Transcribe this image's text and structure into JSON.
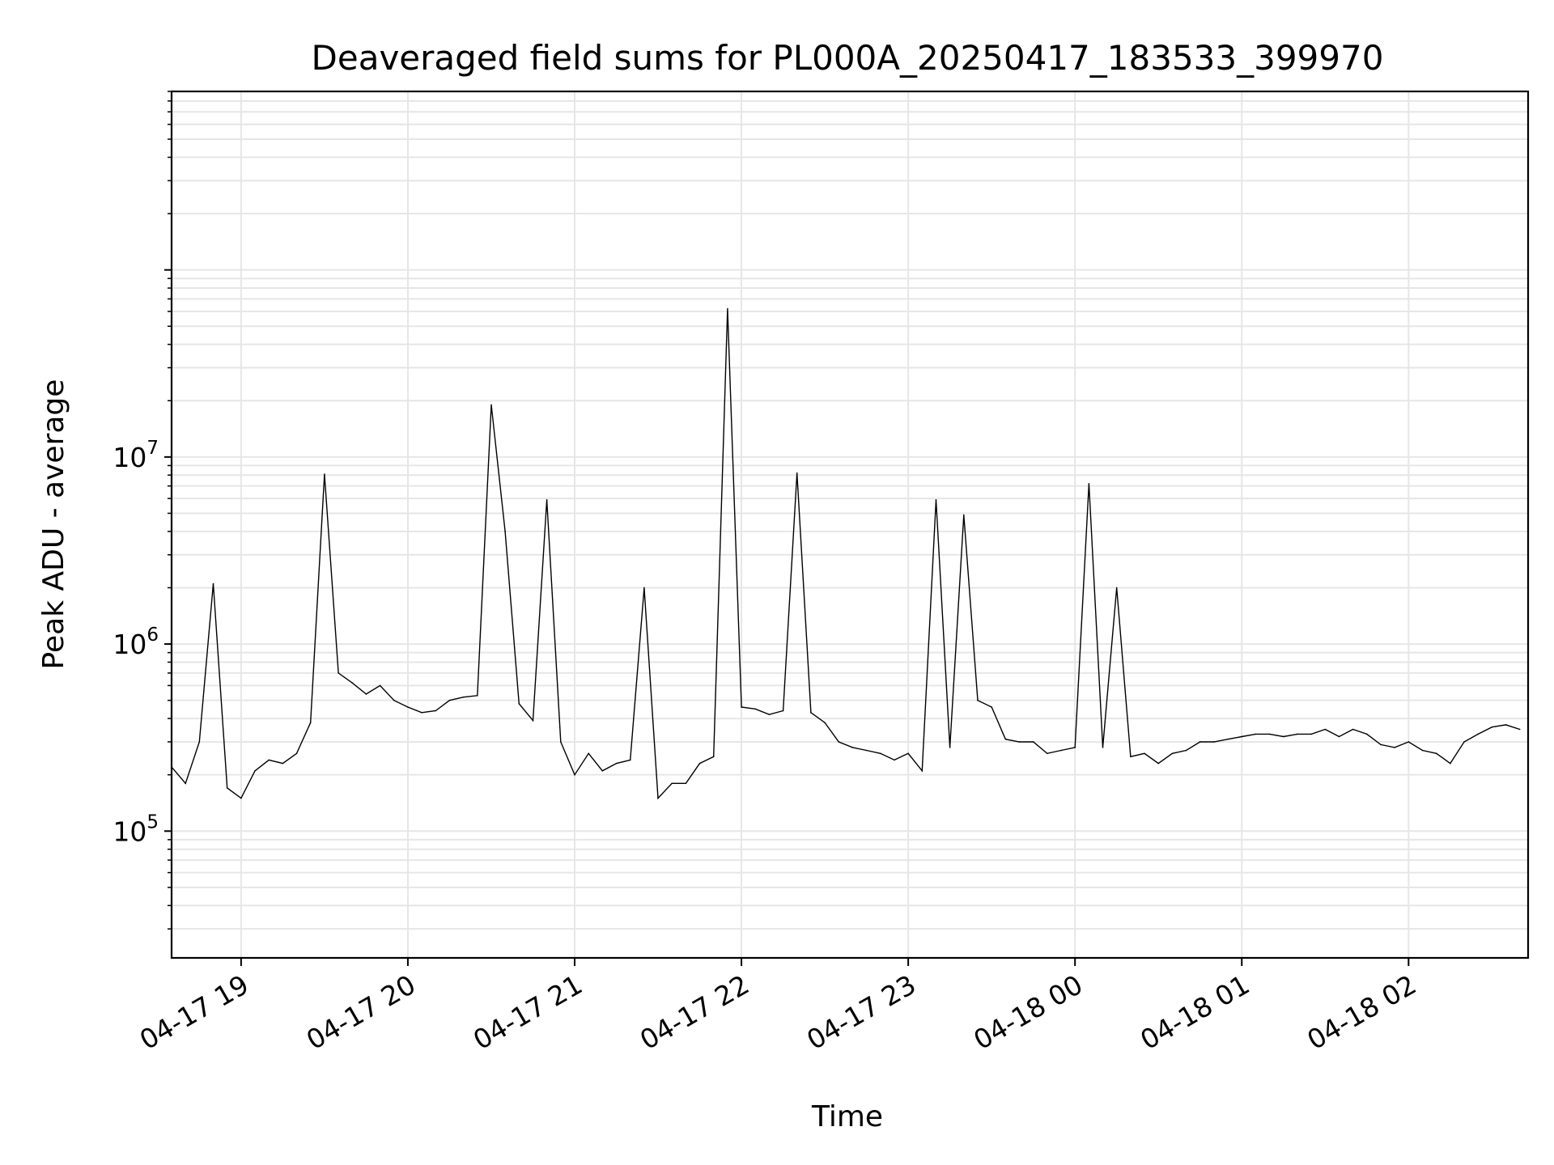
{
  "chart_data": {
    "type": "line",
    "title": "Deaveraged field sums for PL000A_20250417_183533_399970",
    "xlabel": "Time",
    "ylabel": "Peak ADU - average",
    "yscale": "log",
    "ylim": [
      21000,
      900000000
    ],
    "xlim": [
      "2025-04-17 18:35",
      "2025-04-18 02:43"
    ],
    "grid": true,
    "line_color": "#000000",
    "grid_color": "#e6e6e6",
    "x_ticks": [
      {
        "label": "04-17 19",
        "t": "2025-04-17 19:00"
      },
      {
        "label": "04-17 20",
        "t": "2025-04-17 20:00"
      },
      {
        "label": "04-17 21",
        "t": "2025-04-17 21:00"
      },
      {
        "label": "04-17 22",
        "t": "2025-04-17 22:00"
      },
      {
        "label": "04-17 23",
        "t": "2025-04-17 23:00"
      },
      {
        "label": "04-18 00",
        "t": "2025-04-18 00:00"
      },
      {
        "label": "04-18 01",
        "t": "2025-04-18 01:00"
      },
      {
        "label": "04-18 02",
        "t": "2025-04-18 02:00"
      }
    ],
    "y_ticks": [
      {
        "base": "10",
        "exp": "5",
        "value": 100000
      },
      {
        "base": "10",
        "exp": "6",
        "value": 1000000
      },
      {
        "base": "10",
        "exp": "7",
        "value": 10000000
      }
    ],
    "series": [
      {
        "x": [
          "2025-04-17 18:35",
          "2025-04-17 18:40",
          "2025-04-17 18:45",
          "2025-04-17 18:50",
          "2025-04-17 18:55",
          "2025-04-17 19:00",
          "2025-04-17 19:05",
          "2025-04-17 19:10",
          "2025-04-17 19:15",
          "2025-04-17 19:20",
          "2025-04-17 19:25",
          "2025-04-17 19:30",
          "2025-04-17 19:35",
          "2025-04-17 19:40",
          "2025-04-17 19:45",
          "2025-04-17 19:50",
          "2025-04-17 19:55",
          "2025-04-17 20:00",
          "2025-04-17 20:05",
          "2025-04-17 20:10",
          "2025-04-17 20:15",
          "2025-04-17 20:20",
          "2025-04-17 20:25",
          "2025-04-17 20:30",
          "2025-04-17 20:35",
          "2025-04-17 20:40",
          "2025-04-17 20:45",
          "2025-04-17 20:50",
          "2025-04-17 20:55",
          "2025-04-17 21:00",
          "2025-04-17 21:05",
          "2025-04-17 21:10",
          "2025-04-17 21:15",
          "2025-04-17 21:20",
          "2025-04-17 21:25",
          "2025-04-17 21:30",
          "2025-04-17 21:35",
          "2025-04-17 21:40",
          "2025-04-17 21:45",
          "2025-04-17 21:50",
          "2025-04-17 21:55",
          "2025-04-17 22:00",
          "2025-04-17 22:05",
          "2025-04-17 22:10",
          "2025-04-17 22:15",
          "2025-04-17 22:20",
          "2025-04-17 22:25",
          "2025-04-17 22:30",
          "2025-04-17 22:35",
          "2025-04-17 22:40",
          "2025-04-17 22:45",
          "2025-04-17 22:50",
          "2025-04-17 22:55",
          "2025-04-17 23:00",
          "2025-04-17 23:05",
          "2025-04-17 23:10",
          "2025-04-17 23:15",
          "2025-04-17 23:20",
          "2025-04-17 23:25",
          "2025-04-17 23:30",
          "2025-04-17 23:35",
          "2025-04-17 23:40",
          "2025-04-17 23:45",
          "2025-04-17 23:50",
          "2025-04-17 23:55",
          "2025-04-18 00:00",
          "2025-04-18 00:05",
          "2025-04-18 00:10",
          "2025-04-18 00:15",
          "2025-04-18 00:20",
          "2025-04-18 00:25",
          "2025-04-18 00:30",
          "2025-04-18 00:35",
          "2025-04-18 00:40",
          "2025-04-18 00:45",
          "2025-04-18 00:50",
          "2025-04-18 00:55",
          "2025-04-18 01:00",
          "2025-04-18 01:05",
          "2025-04-18 01:10",
          "2025-04-18 01:15",
          "2025-04-18 01:20",
          "2025-04-18 01:25",
          "2025-04-18 01:30",
          "2025-04-18 01:35",
          "2025-04-18 01:40",
          "2025-04-18 01:45",
          "2025-04-18 01:50",
          "2025-04-18 01:55",
          "2025-04-18 02:00",
          "2025-04-18 02:05",
          "2025-04-18 02:10",
          "2025-04-18 02:15",
          "2025-04-18 02:20",
          "2025-04-18 02:25",
          "2025-04-18 02:30",
          "2025-04-18 02:35",
          "2025-04-18 02:40"
        ],
        "y": [
          220000,
          180000,
          300000,
          2100000,
          170000,
          150000,
          210000,
          240000,
          230000,
          260000,
          380000,
          8100000,
          700000,
          620000,
          540000,
          600000,
          500000,
          460000,
          430000,
          440000,
          500000,
          520000,
          530000,
          19000000,
          4000000,
          480000,
          390000,
          5900000,
          300000,
          200000,
          260000,
          210000,
          230000,
          240000,
          2000000,
          150000,
          180000,
          180000,
          230000,
          250000,
          62000000,
          460000,
          450000,
          420000,
          440000,
          8200000,
          430000,
          380000,
          300000,
          280000,
          270000,
          260000,
          240000,
          260000,
          210000,
          5900000,
          280000,
          4900000,
          500000,
          460000,
          310000,
          300000,
          300000,
          260000,
          270000,
          280000,
          7200000,
          280000,
          2000000,
          250000,
          260000,
          230000,
          260000,
          270000,
          300000,
          300000,
          310000,
          320000,
          330000,
          330000,
          320000,
          330000,
          330000,
          350000,
          320000,
          350000,
          330000,
          290000,
          280000,
          300000,
          270000,
          260000,
          230000,
          300000,
          330000,
          360000,
          370000,
          350000
        ]
      }
    ]
  }
}
